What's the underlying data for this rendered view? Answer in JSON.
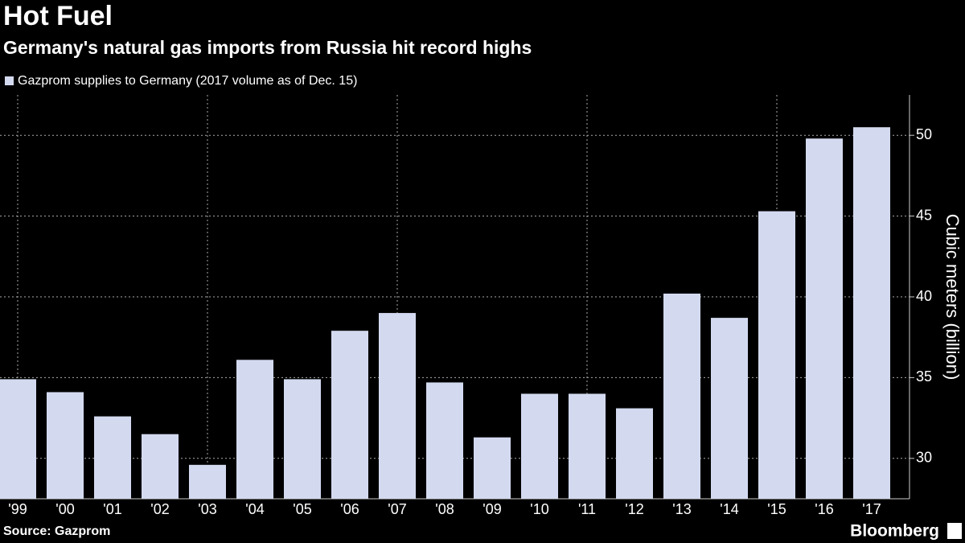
{
  "chart_data": {
    "type": "bar",
    "title": "Hot Fuel",
    "subtitle": "Germany's natural gas imports from Russia hit record highs",
    "legend": "Gazprom supplies to Germany (2017 volume as of Dec. 15)",
    "source": "Source: Gazprom",
    "brand": "Bloomberg",
    "ylabel": "Cubic meters (billion)",
    "categories": [
      "'99",
      "'00",
      "'01",
      "'02",
      "'03",
      "'04",
      "'05",
      "'06",
      "'07",
      "'08",
      "'09",
      "'10",
      "'11",
      "'12",
      "'13",
      "'14",
      "'15",
      "'16",
      "'17"
    ],
    "values": [
      34.9,
      34.1,
      32.6,
      31.5,
      29.6,
      36.1,
      34.9,
      37.9,
      39.0,
      34.7,
      31.3,
      34.0,
      34.0,
      33.1,
      40.2,
      38.7,
      45.3,
      49.8,
      50.5
    ],
    "color": "#d3daf0",
    "ylim": [
      27.5,
      52.5
    ],
    "yticks": [
      30,
      35,
      40,
      45,
      50
    ],
    "grid": true
  }
}
